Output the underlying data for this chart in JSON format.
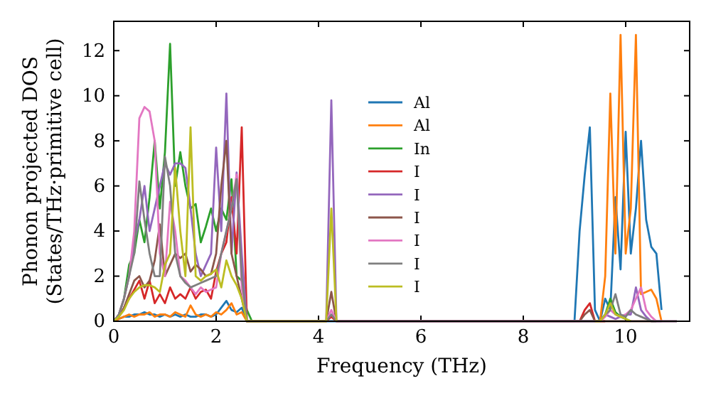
{
  "chart_data": {
    "type": "line",
    "xlabel": "Frequency (THz)",
    "ylabel": "Phonon projected DOS\n(States/THz·primitive cell)",
    "xlim": [
      0,
      11.25
    ],
    "ylim": [
      0,
      13.3
    ],
    "xticks": [
      0,
      2,
      4,
      6,
      8,
      10
    ],
    "yticks": [
      0,
      2,
      4,
      6,
      8,
      10,
      12
    ],
    "grid": false,
    "legend": "right",
    "line_style": "solid",
    "marker": "none",
    "x": [
      0,
      0.1,
      0.2,
      0.3,
      0.4,
      0.5,
      0.6,
      0.7,
      0.8,
      0.9,
      1.0,
      1.1,
      1.2,
      1.3,
      1.4,
      1.5,
      1.6,
      1.7,
      1.8,
      1.9,
      2.0,
      2.1,
      2.2,
      2.3,
      2.4,
      2.5,
      2.6,
      2.7,
      4.15,
      4.25,
      4.35,
      9.0,
      9.1,
      9.2,
      9.3,
      9.4,
      9.5,
      9.6,
      9.7,
      9.8,
      9.9,
      10.0,
      10.1,
      10.2,
      10.3,
      10.4,
      10.5,
      10.6,
      10.7,
      10.8,
      11.0
    ],
    "series": [
      {
        "name": "Al",
        "color": "#1f77b4",
        "values": [
          0,
          0.1,
          0.2,
          0.2,
          0.3,
          0.3,
          0.4,
          0.3,
          0.3,
          0.2,
          0.3,
          0.2,
          0.3,
          0.2,
          0.3,
          0.2,
          0.2,
          0.3,
          0.3,
          0.2,
          0.3,
          0.6,
          0.9,
          0.5,
          0.4,
          0.6,
          0,
          0,
          0,
          0,
          0,
          0,
          4,
          6.5,
          8.6,
          0.5,
          0,
          1,
          0.5,
          5.5,
          2.3,
          8.4,
          3,
          5,
          8,
          4.5,
          3.3,
          3,
          0.5,
          null,
          null
        ]
      },
      {
        "name": "Al",
        "color": "#ff7f0e",
        "values": [
          0,
          0.1,
          0.2,
          0.3,
          0.2,
          0.3,
          0.3,
          0.4,
          0.2,
          0.3,
          0.3,
          0.2,
          0.4,
          0.3,
          0.2,
          0.7,
          0.3,
          0.2,
          0.3,
          0.2,
          0.4,
          0.3,
          0.5,
          0.8,
          0.3,
          0.4,
          0,
          0,
          0,
          null,
          null,
          null,
          null,
          null,
          null,
          0,
          0,
          2,
          10.1,
          3,
          12.7,
          3,
          5,
          12.7,
          1.2,
          1.3,
          1.4,
          1,
          0,
          null,
          null
        ]
      },
      {
        "name": "In",
        "color": "#2ca02c",
        "values": [
          0,
          0.3,
          1,
          2.5,
          3,
          4.5,
          3.5,
          5.5,
          8,
          5,
          7.5,
          12.3,
          6,
          7.5,
          6,
          5,
          5.2,
          3.5,
          4.2,
          5,
          4,
          5,
          4.5,
          6.3,
          2,
          1.8,
          0.5,
          0,
          0,
          null,
          0,
          0,
          0,
          0,
          0,
          0,
          0,
          0.3,
          1,
          0.4,
          0.2,
          0.1,
          0,
          null,
          null,
          null,
          null,
          null,
          null,
          null,
          null
        ]
      },
      {
        "name": "I",
        "color": "#d62728",
        "values": [
          null,
          null,
          0.6,
          1,
          1.4,
          1.8,
          1,
          1.8,
          0.8,
          1.2,
          0.8,
          1.5,
          1,
          1.2,
          1,
          1.5,
          1,
          1.3,
          1.4,
          1,
          2.2,
          3,
          3.5,
          5.5,
          3,
          8.6,
          0,
          0,
          0,
          0.2,
          0,
          0,
          0,
          0.5,
          0.8,
          0,
          0,
          0,
          null,
          null,
          null,
          null,
          null,
          null,
          null,
          null,
          null,
          null,
          null,
          null,
          null
        ]
      },
      {
        "name": "I",
        "color": "#9467bd",
        "values": [
          0,
          0.3,
          1,
          2,
          3.5,
          4.5,
          6,
          4,
          5,
          6,
          7,
          6.5,
          7,
          7,
          6.8,
          5,
          3,
          2,
          2.5,
          3,
          7.7,
          4,
          10.1,
          3,
          6.6,
          3,
          0,
          0,
          0,
          9.8,
          0,
          0,
          0,
          0,
          0,
          0,
          0,
          0.3,
          0.2,
          0.1,
          0.2,
          0.3,
          0.3,
          1.5,
          0.5,
          0.2,
          0,
          0,
          0,
          null,
          null
        ]
      },
      {
        "name": "I",
        "color": "#8c564b",
        "values": [
          0,
          0.2,
          0.6,
          1.2,
          1.8,
          2,
          1.5,
          1.8,
          2.7,
          4.3,
          2,
          2.5,
          3,
          2.8,
          3,
          2.2,
          2.5,
          2.3,
          2,
          2.1,
          3,
          6,
          8,
          3,
          2,
          1,
          0,
          0,
          0,
          1.3,
          0,
          0,
          0,
          0.3,
          0.5,
          0,
          0,
          0,
          0,
          0,
          0,
          0,
          0,
          0,
          0,
          0,
          0,
          0,
          null,
          null,
          null
        ]
      },
      {
        "name": "I",
        "color": "#e377c2",
        "values": [
          0,
          0.3,
          1,
          2,
          4,
          9,
          9.5,
          9.3,
          8,
          3,
          2,
          5.3,
          4,
          2,
          1.8,
          1.5,
          1.2,
          1.5,
          1.3,
          1.4,
          1.5,
          3,
          4,
          5,
          6.5,
          1.5,
          0,
          0,
          0,
          0.5,
          0,
          0,
          0,
          0,
          0,
          0,
          0,
          0.2,
          0.5,
          0.3,
          0.2,
          0.3,
          0.5,
          1,
          1.5,
          0.5,
          0.2,
          0,
          0,
          0,
          0
        ]
      },
      {
        "name": "I",
        "color": "#7f7f7f",
        "values": [
          0,
          0.3,
          1,
          2,
          3,
          6.2,
          4.5,
          3,
          2,
          2,
          7.3,
          6,
          3,
          2,
          1.7,
          1.5,
          1.6,
          1.7,
          1.8,
          1.9,
          2,
          3,
          4,
          5,
          6.3,
          2,
          0,
          0,
          0,
          0.3,
          0,
          0,
          0,
          0,
          0,
          0,
          0,
          0.3,
          0.5,
          1.2,
          0.3,
          0.2,
          0.5,
          0.3,
          0.2,
          0.1,
          0,
          0,
          0,
          0,
          0
        ]
      },
      {
        "name": "I",
        "color": "#bcbd22",
        "values": [
          0,
          0.2,
          0.5,
          1,
          1.3,
          1.5,
          1.6,
          1.6,
          1.5,
          1.3,
          2.5,
          3,
          6.8,
          4,
          2,
          8.6,
          2,
          1.8,
          2,
          2.1,
          2.3,
          1.5,
          2.7,
          2,
          1.6,
          1,
          0,
          0,
          0,
          5,
          0,
          null,
          null,
          null,
          null,
          0,
          0,
          0.3,
          0.8,
          0.3,
          0.2,
          0.1,
          0,
          null,
          null,
          null,
          null,
          null,
          null,
          null,
          null
        ]
      }
    ]
  }
}
